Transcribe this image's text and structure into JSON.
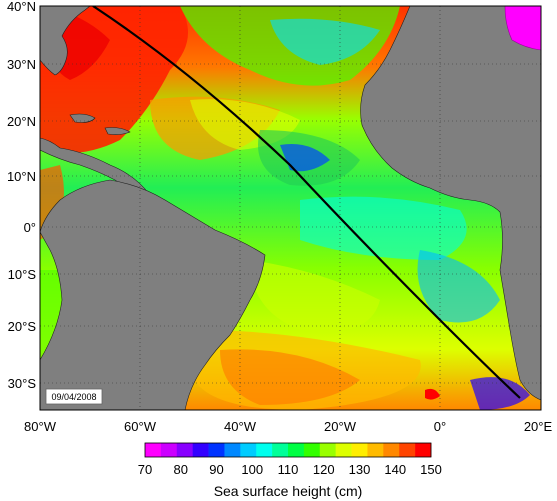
{
  "map": {
    "date_label": "09/04/2008",
    "lat_ticks": [
      "40°N",
      "30°N",
      "20°N",
      "10°N",
      "0°",
      "10°S",
      "20°S",
      "30°S"
    ],
    "lon_ticks": [
      "80°W",
      "60°W",
      "40°W",
      "20°W",
      "0°",
      "20°E"
    ],
    "extent": {
      "lon_min": -80,
      "lon_max": 20,
      "lat_min": -36,
      "lat_max": 40
    },
    "land_color": "#7f7f7f",
    "track_color": "#000000"
  },
  "colorbar": {
    "title": "Sea surface height (cm)",
    "tick_labels": [
      "70",
      "80",
      "90",
      "100",
      "110",
      "120",
      "130",
      "140",
      "150"
    ],
    "colors": [
      "#ff00ff",
      "#cc00ff",
      "#8800ff",
      "#3300ff",
      "#0033ff",
      "#0088ff",
      "#00ccff",
      "#00ffee",
      "#00ff99",
      "#00ff44",
      "#33ff00",
      "#99ff00",
      "#ddff00",
      "#ffee00",
      "#ffbb00",
      "#ff8800",
      "#ff4400",
      "#ff0000"
    ]
  }
}
